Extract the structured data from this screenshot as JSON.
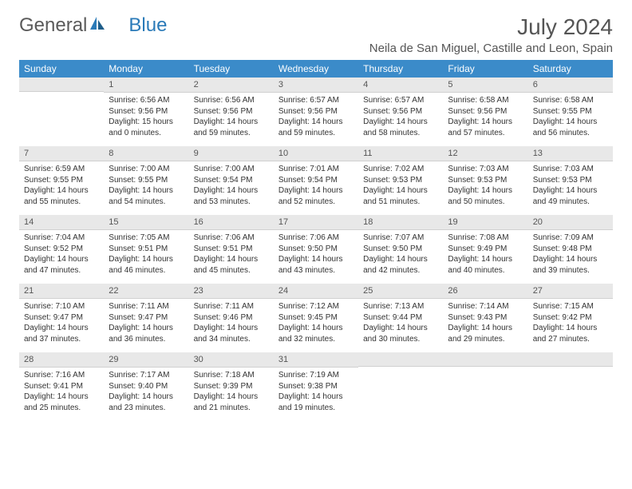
{
  "logo": {
    "word1": "General",
    "word2": "Blue"
  },
  "title": "July 2024",
  "location": "Neila de San Miguel, Castille and Leon, Spain",
  "colors": {
    "header_bg": "#3b8bc9",
    "header_text": "#ffffff",
    "daynum_bg": "#e8e8e8",
    "text": "#333333",
    "logo_gray": "#5a5a5a",
    "logo_blue": "#2a7ab8"
  },
  "weekdays": [
    "Sunday",
    "Monday",
    "Tuesday",
    "Wednesday",
    "Thursday",
    "Friday",
    "Saturday"
  ],
  "weeks": [
    [
      {
        "day": "",
        "sunrise": "",
        "sunset": "",
        "daylight": ""
      },
      {
        "day": "1",
        "sunrise": "Sunrise: 6:56 AM",
        "sunset": "Sunset: 9:56 PM",
        "daylight": "Daylight: 15 hours and 0 minutes."
      },
      {
        "day": "2",
        "sunrise": "Sunrise: 6:56 AM",
        "sunset": "Sunset: 9:56 PM",
        "daylight": "Daylight: 14 hours and 59 minutes."
      },
      {
        "day": "3",
        "sunrise": "Sunrise: 6:57 AM",
        "sunset": "Sunset: 9:56 PM",
        "daylight": "Daylight: 14 hours and 59 minutes."
      },
      {
        "day": "4",
        "sunrise": "Sunrise: 6:57 AM",
        "sunset": "Sunset: 9:56 PM",
        "daylight": "Daylight: 14 hours and 58 minutes."
      },
      {
        "day": "5",
        "sunrise": "Sunrise: 6:58 AM",
        "sunset": "Sunset: 9:56 PM",
        "daylight": "Daylight: 14 hours and 57 minutes."
      },
      {
        "day": "6",
        "sunrise": "Sunrise: 6:58 AM",
        "sunset": "Sunset: 9:55 PM",
        "daylight": "Daylight: 14 hours and 56 minutes."
      }
    ],
    [
      {
        "day": "7",
        "sunrise": "Sunrise: 6:59 AM",
        "sunset": "Sunset: 9:55 PM",
        "daylight": "Daylight: 14 hours and 55 minutes."
      },
      {
        "day": "8",
        "sunrise": "Sunrise: 7:00 AM",
        "sunset": "Sunset: 9:55 PM",
        "daylight": "Daylight: 14 hours and 54 minutes."
      },
      {
        "day": "9",
        "sunrise": "Sunrise: 7:00 AM",
        "sunset": "Sunset: 9:54 PM",
        "daylight": "Daylight: 14 hours and 53 minutes."
      },
      {
        "day": "10",
        "sunrise": "Sunrise: 7:01 AM",
        "sunset": "Sunset: 9:54 PM",
        "daylight": "Daylight: 14 hours and 52 minutes."
      },
      {
        "day": "11",
        "sunrise": "Sunrise: 7:02 AM",
        "sunset": "Sunset: 9:53 PM",
        "daylight": "Daylight: 14 hours and 51 minutes."
      },
      {
        "day": "12",
        "sunrise": "Sunrise: 7:03 AM",
        "sunset": "Sunset: 9:53 PM",
        "daylight": "Daylight: 14 hours and 50 minutes."
      },
      {
        "day": "13",
        "sunrise": "Sunrise: 7:03 AM",
        "sunset": "Sunset: 9:53 PM",
        "daylight": "Daylight: 14 hours and 49 minutes."
      }
    ],
    [
      {
        "day": "14",
        "sunrise": "Sunrise: 7:04 AM",
        "sunset": "Sunset: 9:52 PM",
        "daylight": "Daylight: 14 hours and 47 minutes."
      },
      {
        "day": "15",
        "sunrise": "Sunrise: 7:05 AM",
        "sunset": "Sunset: 9:51 PM",
        "daylight": "Daylight: 14 hours and 46 minutes."
      },
      {
        "day": "16",
        "sunrise": "Sunrise: 7:06 AM",
        "sunset": "Sunset: 9:51 PM",
        "daylight": "Daylight: 14 hours and 45 minutes."
      },
      {
        "day": "17",
        "sunrise": "Sunrise: 7:06 AM",
        "sunset": "Sunset: 9:50 PM",
        "daylight": "Daylight: 14 hours and 43 minutes."
      },
      {
        "day": "18",
        "sunrise": "Sunrise: 7:07 AM",
        "sunset": "Sunset: 9:50 PM",
        "daylight": "Daylight: 14 hours and 42 minutes."
      },
      {
        "day": "19",
        "sunrise": "Sunrise: 7:08 AM",
        "sunset": "Sunset: 9:49 PM",
        "daylight": "Daylight: 14 hours and 40 minutes."
      },
      {
        "day": "20",
        "sunrise": "Sunrise: 7:09 AM",
        "sunset": "Sunset: 9:48 PM",
        "daylight": "Daylight: 14 hours and 39 minutes."
      }
    ],
    [
      {
        "day": "21",
        "sunrise": "Sunrise: 7:10 AM",
        "sunset": "Sunset: 9:47 PM",
        "daylight": "Daylight: 14 hours and 37 minutes."
      },
      {
        "day": "22",
        "sunrise": "Sunrise: 7:11 AM",
        "sunset": "Sunset: 9:47 PM",
        "daylight": "Daylight: 14 hours and 36 minutes."
      },
      {
        "day": "23",
        "sunrise": "Sunrise: 7:11 AM",
        "sunset": "Sunset: 9:46 PM",
        "daylight": "Daylight: 14 hours and 34 minutes."
      },
      {
        "day": "24",
        "sunrise": "Sunrise: 7:12 AM",
        "sunset": "Sunset: 9:45 PM",
        "daylight": "Daylight: 14 hours and 32 minutes."
      },
      {
        "day": "25",
        "sunrise": "Sunrise: 7:13 AM",
        "sunset": "Sunset: 9:44 PM",
        "daylight": "Daylight: 14 hours and 30 minutes."
      },
      {
        "day": "26",
        "sunrise": "Sunrise: 7:14 AM",
        "sunset": "Sunset: 9:43 PM",
        "daylight": "Daylight: 14 hours and 29 minutes."
      },
      {
        "day": "27",
        "sunrise": "Sunrise: 7:15 AM",
        "sunset": "Sunset: 9:42 PM",
        "daylight": "Daylight: 14 hours and 27 minutes."
      }
    ],
    [
      {
        "day": "28",
        "sunrise": "Sunrise: 7:16 AM",
        "sunset": "Sunset: 9:41 PM",
        "daylight": "Daylight: 14 hours and 25 minutes."
      },
      {
        "day": "29",
        "sunrise": "Sunrise: 7:17 AM",
        "sunset": "Sunset: 9:40 PM",
        "daylight": "Daylight: 14 hours and 23 minutes."
      },
      {
        "day": "30",
        "sunrise": "Sunrise: 7:18 AM",
        "sunset": "Sunset: 9:39 PM",
        "daylight": "Daylight: 14 hours and 21 minutes."
      },
      {
        "day": "31",
        "sunrise": "Sunrise: 7:19 AM",
        "sunset": "Sunset: 9:38 PM",
        "daylight": "Daylight: 14 hours and 19 minutes."
      },
      {
        "day": "",
        "sunrise": "",
        "sunset": "",
        "daylight": ""
      },
      {
        "day": "",
        "sunrise": "",
        "sunset": "",
        "daylight": ""
      },
      {
        "day": "",
        "sunrise": "",
        "sunset": "",
        "daylight": ""
      }
    ]
  ]
}
